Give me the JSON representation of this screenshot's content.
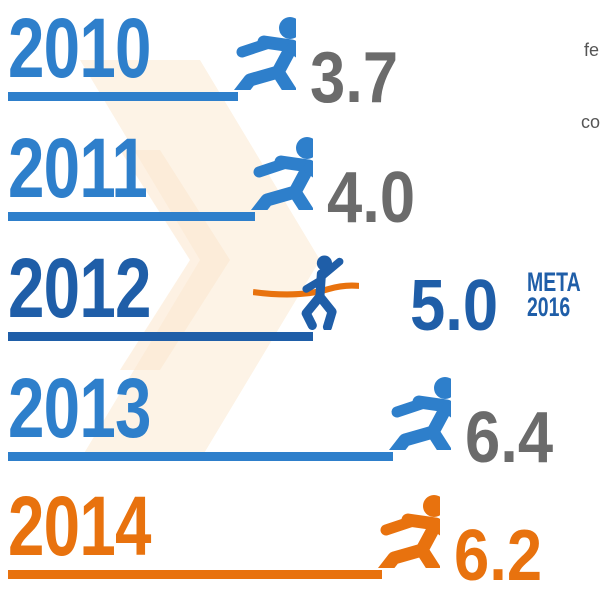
{
  "chart_data": {
    "type": "bar",
    "categories": [
      "2010",
      "2011",
      "2012",
      "2013",
      "2014"
    ],
    "values": [
      3.7,
      4.0,
      5.0,
      6.4,
      6.2
    ],
    "value_labels": [
      "3.7",
      "4.0",
      "5.0",
      "6.4",
      "6.2"
    ],
    "annotation": {
      "line1": "META",
      "line2": "2016"
    },
    "side_text": [
      "fe",
      "co"
    ],
    "colors": {
      "blue": "#2e7fcb",
      "dark_blue": "#1f5ea8",
      "orange": "#e8720e",
      "gray": "#6b6b6b"
    }
  }
}
